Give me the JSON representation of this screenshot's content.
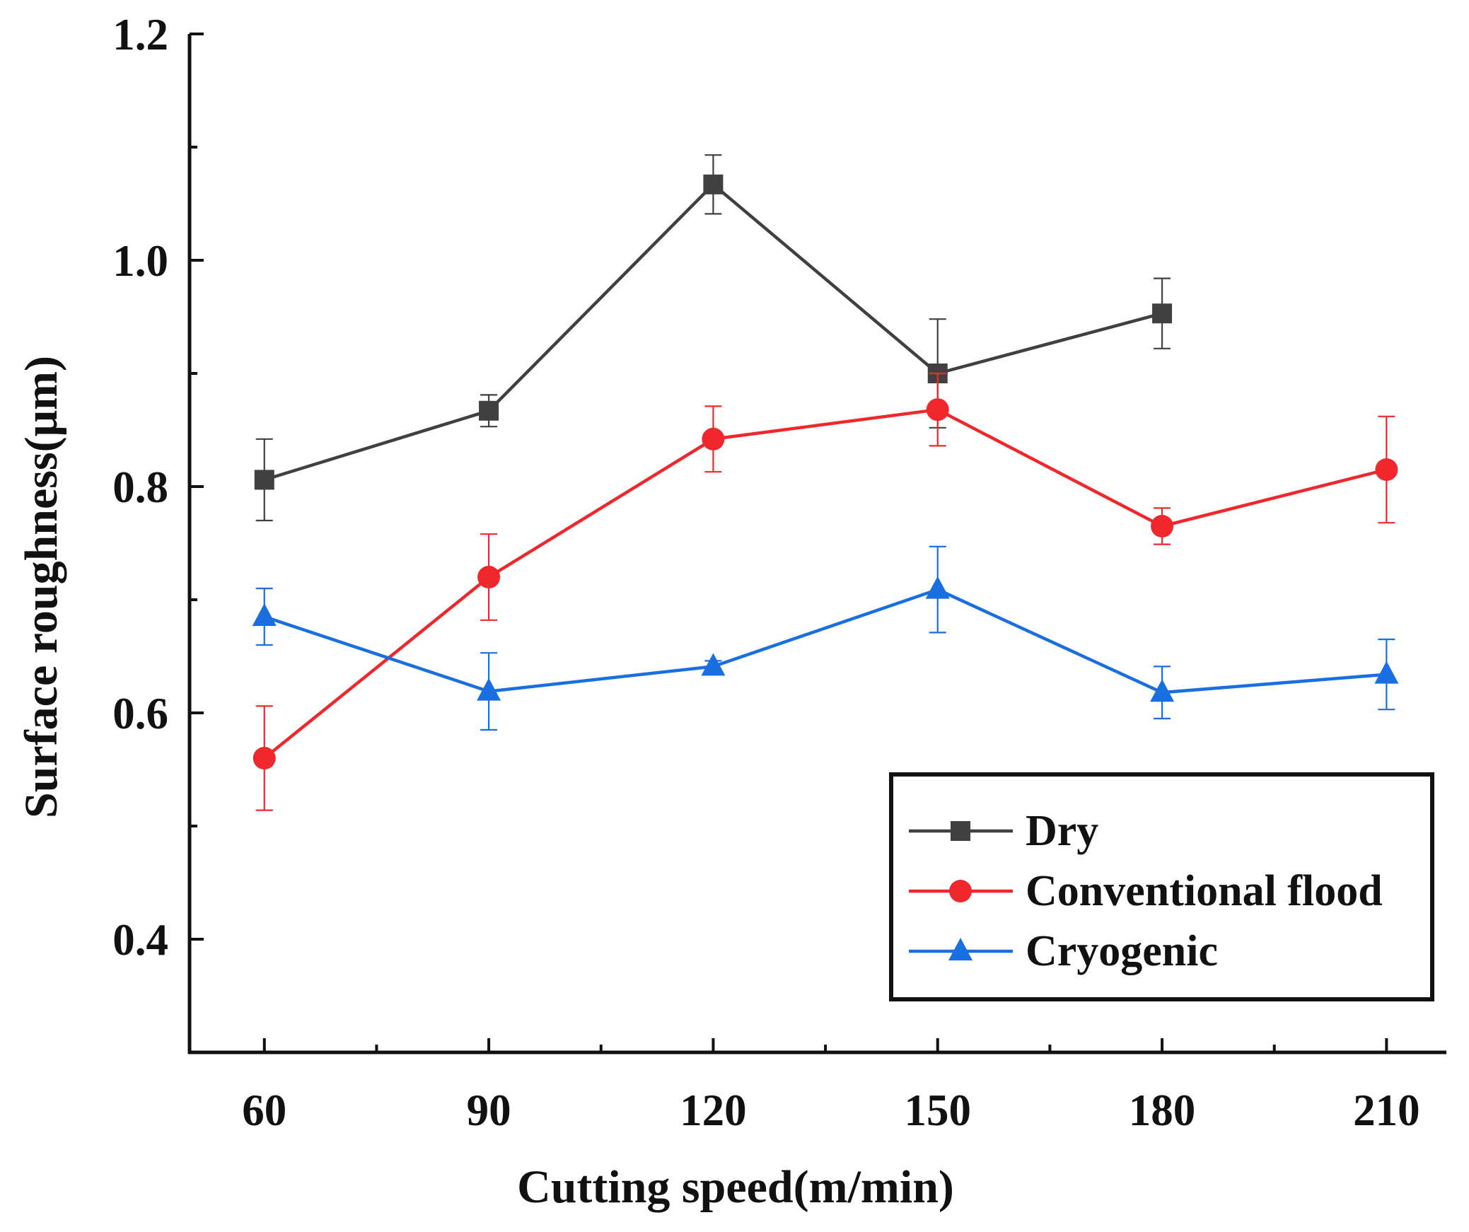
{
  "chart_data": {
    "type": "line",
    "title": "",
    "xlabel": "Cutting speed(m/min)",
    "ylabel": "Surface roughness(μm)",
    "x": [
      60,
      90,
      120,
      150,
      180,
      210
    ],
    "x_tick_labels": [
      "60",
      "90",
      "120",
      "150",
      "180",
      "210"
    ],
    "xlim": [
      50,
      218
    ],
    "ylim": [
      0.3,
      1.2
    ],
    "y_ticks": [
      0.4,
      0.6,
      0.8,
      1.0,
      1.2
    ],
    "y_tick_labels": [
      "0.4",
      "0.6",
      "0.8",
      "1.0",
      "1.2"
    ],
    "legend_position": "bottom-right",
    "grid": false,
    "series": [
      {
        "name": "Dry",
        "color": "#404040",
        "marker": "square",
        "x": [
          60,
          90,
          120,
          150,
          180
        ],
        "values": [
          0.806,
          0.867,
          1.067,
          0.9,
          0.953
        ],
        "err_upper": [
          0.036,
          0.014,
          0.026,
          0.048,
          0.031
        ],
        "err_lower": [
          0.036,
          0.014,
          0.026,
          0.048,
          0.031
        ]
      },
      {
        "name": "Conventional flood",
        "color": "#f0282d",
        "marker": "circle",
        "x": [
          60,
          90,
          120,
          150,
          180,
          210
        ],
        "values": [
          0.56,
          0.72,
          0.842,
          0.868,
          0.765,
          0.815
        ],
        "err_upper": [
          0.046,
          0.038,
          0.029,
          0.032,
          0.016,
          0.047
        ],
        "err_lower": [
          0.046,
          0.038,
          0.029,
          0.032,
          0.016,
          0.047
        ]
      },
      {
        "name": "Cryogenic",
        "color": "#1a6fe0",
        "marker": "triangle",
        "x": [
          60,
          90,
          120,
          150,
          180,
          210
        ],
        "values": [
          0.685,
          0.619,
          0.641,
          0.709,
          0.618,
          0.634
        ],
        "err_upper": [
          0.025,
          0.034,
          0.005,
          0.038,
          0.023,
          0.031
        ],
        "err_lower": [
          0.025,
          0.034,
          0.005,
          0.038,
          0.023,
          0.031
        ]
      }
    ]
  }
}
